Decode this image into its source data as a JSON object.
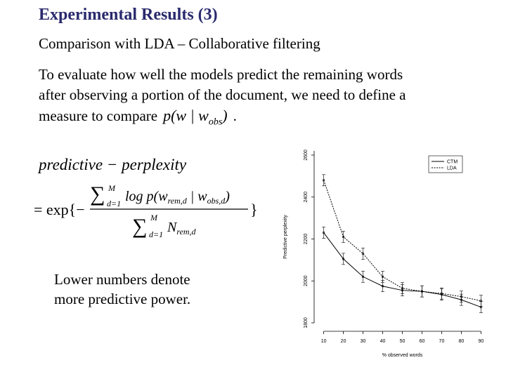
{
  "slide": {
    "title": "Experimental Results (3)",
    "subtitle": "Comparison with LDA – Collaborative filtering",
    "paragraph_lines": [
      "To evaluate how well the models predict the remaining words",
      "after observing a portion of the document, we need to define a",
      "measure to compare"
    ],
    "inline_formula": "p(w | w",
    "inline_formula_sub": "obs",
    "inline_formula_end": ")",
    "paragraph_end": ".",
    "formula_label": "predictive − perplexity",
    "formula": {
      "eq": "= exp{−",
      "num_log": "log p(w",
      "num_sub": "rem,d",
      "num_mid": " | w",
      "num_sub2": "obs,d",
      "num_end": ")",
      "den_N": "N",
      "den_sub": "rem,d",
      "sum_top": "M",
      "sum_bottom": "d=1",
      "close": "}"
    },
    "note_lines": [
      "Lower numbers denote",
      "more predictive power."
    ]
  },
  "chart_data": {
    "type": "line",
    "xlabel": "% observed words",
    "ylabel": "Predictive perplexity",
    "x": [
      10,
      20,
      30,
      40,
      50,
      60,
      70,
      80,
      90
    ],
    "xticks": [
      "10",
      "20",
      "30",
      "40",
      "50",
      "60",
      "70",
      "80",
      "90"
    ],
    "yticks": [
      "1800",
      "2000",
      "2200",
      "2400",
      "2600"
    ],
    "ylim": [
      1800,
      2620
    ],
    "xlim": [
      8,
      92
    ],
    "series": [
      {
        "name": "CTM",
        "values": [
          2230,
          2105,
          2020,
          1975,
          1955,
          1950,
          1935,
          1910,
          1875
        ]
      },
      {
        "name": "LDA",
        "values": [
          2480,
          2210,
          2130,
          2020,
          1965,
          1950,
          1940,
          1925,
          1905
        ]
      }
    ],
    "legend": "top-right",
    "colors": {
      "axis": "#000000",
      "ctm": "#000000",
      "lda": "#000000"
    }
  }
}
